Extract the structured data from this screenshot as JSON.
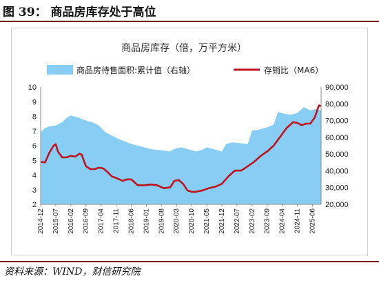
{
  "figure": {
    "title": "图 39：  商品房库存处于高位",
    "source": "资料来源：WIND，财信研究院"
  },
  "colors": {
    "area": "#87cdf4",
    "line": "#c1121b",
    "rule": "#7a1318"
  },
  "chart_data": {
    "type": "area+line",
    "title": "商品房库存（倍，万平方米）",
    "legend_position": "top",
    "grid": false,
    "x_ticks": [
      "2014-12",
      "2015-07",
      "2016-02",
      "2016-09",
      "2017-04",
      "2017-11",
      "2018-06",
      "2019-01",
      "2019-08",
      "2020-03",
      "2020-10",
      "2021-05",
      "2021-12",
      "2022-07",
      "2023-02",
      "2023-09",
      "2024-04",
      "2024-11",
      "2025-06"
    ],
    "x_range": [
      "2014-12",
      "2025-10"
    ],
    "y_left": {
      "range": [
        2,
        10
      ],
      "ticks": [
        2,
        3,
        4,
        5,
        6,
        7,
        8,
        9,
        10
      ]
    },
    "y_right": {
      "range": [
        20000,
        90000
      ],
      "ticks": [
        "20,000",
        "30,000",
        "40,000",
        "50,000",
        "60,000",
        "70,000",
        "80,000",
        "90,000"
      ],
      "tick_values": [
        20000,
        30000,
        40000,
        50000,
        60000,
        70000,
        80000,
        90000
      ]
    },
    "series": [
      {
        "name": "商品房待售面积:累计值（右轴）",
        "type": "area",
        "axis": "right",
        "points": [
          [
            "2014-12",
            63000
          ],
          [
            "2015-02",
            65500
          ],
          [
            "2015-04",
            66500
          ],
          [
            "2015-07",
            67000
          ],
          [
            "2015-10",
            69000
          ],
          [
            "2015-12",
            71500
          ],
          [
            "2016-02",
            73000
          ],
          [
            "2016-05",
            72000
          ],
          [
            "2016-08",
            70500
          ],
          [
            "2016-10",
            69500
          ],
          [
            "2016-12",
            69000
          ],
          [
            "2017-03",
            67000
          ],
          [
            "2017-06",
            63000
          ],
          [
            "2017-09",
            61000
          ],
          [
            "2017-12",
            59000
          ],
          [
            "2018-03",
            57500
          ],
          [
            "2018-06",
            56000
          ],
          [
            "2018-09",
            55000
          ],
          [
            "2018-12",
            54000
          ],
          [
            "2019-03",
            53000
          ],
          [
            "2019-06",
            52500
          ],
          [
            "2019-09",
            52000
          ],
          [
            "2019-12",
            51500
          ],
          [
            "2020-02",
            53000
          ],
          [
            "2020-05",
            54000
          ],
          [
            "2020-08",
            53000
          ],
          [
            "2020-12",
            51500
          ],
          [
            "2021-02",
            52000
          ],
          [
            "2021-05",
            54000
          ],
          [
            "2021-08",
            53000
          ],
          [
            "2021-12",
            51500
          ],
          [
            "2022-02",
            56000
          ],
          [
            "2022-05",
            57000
          ],
          [
            "2022-08",
            56500
          ],
          [
            "2022-12",
            56000
          ],
          [
            "2023-02",
            64000
          ],
          [
            "2023-05",
            64500
          ],
          [
            "2023-08",
            65500
          ],
          [
            "2023-12",
            67500
          ],
          [
            "2024-02",
            75000
          ],
          [
            "2024-05",
            74000
          ],
          [
            "2024-08",
            73500
          ],
          [
            "2024-11",
            74500
          ],
          [
            "2025-02",
            78000
          ],
          [
            "2025-05",
            76000
          ],
          [
            "2025-08",
            77000
          ],
          [
            "2025-10",
            76000
          ]
        ]
      },
      {
        "name": "存销比（MA6）",
        "type": "line",
        "axis": "left",
        "points": [
          [
            "2014-12",
            4.9
          ],
          [
            "2015-02",
            4.85
          ],
          [
            "2015-04",
            5.5
          ],
          [
            "2015-06",
            6.0
          ],
          [
            "2015-07",
            6.1
          ],
          [
            "2015-08",
            5.6
          ],
          [
            "2015-10",
            5.2
          ],
          [
            "2015-12",
            5.2
          ],
          [
            "2016-02",
            5.3
          ],
          [
            "2016-04",
            5.25
          ],
          [
            "2016-06",
            5.45
          ],
          [
            "2016-07",
            5.4
          ],
          [
            "2016-09",
            4.6
          ],
          [
            "2016-11",
            4.4
          ],
          [
            "2017-01",
            4.4
          ],
          [
            "2017-03",
            4.5
          ],
          [
            "2017-05",
            4.45
          ],
          [
            "2017-07",
            4.2
          ],
          [
            "2017-09",
            3.9
          ],
          [
            "2017-11",
            3.8
          ],
          [
            "2018-02",
            3.6
          ],
          [
            "2018-04",
            3.7
          ],
          [
            "2018-06",
            3.7
          ],
          [
            "2018-09",
            3.3
          ],
          [
            "2018-12",
            3.3
          ],
          [
            "2019-03",
            3.35
          ],
          [
            "2019-06",
            3.3
          ],
          [
            "2019-09",
            3.1
          ],
          [
            "2019-12",
            3.15
          ],
          [
            "2020-02",
            3.6
          ],
          [
            "2020-04",
            3.65
          ],
          [
            "2020-06",
            3.4
          ],
          [
            "2020-08",
            2.95
          ],
          [
            "2020-10",
            2.85
          ],
          [
            "2020-12",
            2.85
          ],
          [
            "2021-03",
            2.95
          ],
          [
            "2021-06",
            3.1
          ],
          [
            "2021-09",
            3.2
          ],
          [
            "2021-12",
            3.4
          ],
          [
            "2022-03",
            3.9
          ],
          [
            "2022-06",
            4.3
          ],
          [
            "2022-09",
            4.3
          ],
          [
            "2022-12",
            4.6
          ],
          [
            "2023-03",
            4.9
          ],
          [
            "2023-06",
            5.3
          ],
          [
            "2023-09",
            5.6
          ],
          [
            "2023-12",
            6.0
          ],
          [
            "2024-03",
            6.6
          ],
          [
            "2024-06",
            7.2
          ],
          [
            "2024-09",
            7.6
          ],
          [
            "2024-11",
            7.55
          ],
          [
            "2025-01",
            7.4
          ],
          [
            "2025-03",
            7.5
          ],
          [
            "2025-05",
            7.5
          ],
          [
            "2025-07",
            7.9
          ],
          [
            "2025-09",
            8.75
          ],
          [
            "2025-10",
            8.7
          ]
        ]
      }
    ]
  }
}
